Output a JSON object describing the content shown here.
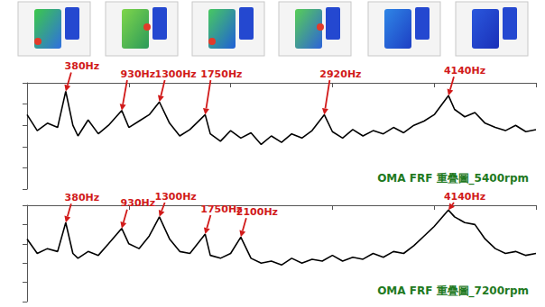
{
  "chart_data": [
    {
      "type": "line",
      "title": "OMA FRF 重疊圖_5400rpm",
      "color": "#000000",
      "x": [
        0,
        100,
        200,
        300,
        380,
        450,
        500,
        600,
        700,
        800,
        930,
        1000,
        1100,
        1200,
        1300,
        1400,
        1500,
        1600,
        1750,
        1800,
        1900,
        2000,
        2100,
        2200,
        2300,
        2400,
        2500,
        2600,
        2700,
        2800,
        2920,
        3000,
        3100,
        3200,
        3300,
        3400,
        3500,
        3600,
        3700,
        3800,
        3900,
        4000,
        4140,
        4200,
        4300,
        4400,
        4500,
        4600,
        4700,
        4800,
        4900,
        5000
      ],
      "values": [
        -30,
        -45,
        -38,
        -42,
        -8,
        -40,
        -50,
        -35,
        -48,
        -40,
        -26,
        -42,
        -36,
        -30,
        -18,
        -38,
        -50,
        -44,
        -30,
        -48,
        -55,
        -45,
        -52,
        -47,
        -58,
        -50,
        -56,
        -48,
        -52,
        -45,
        -30,
        -46,
        -52,
        -44,
        -50,
        -45,
        -48,
        -42,
        -47,
        -40,
        -36,
        -30,
        -12,
        -25,
        -32,
        -28,
        -38,
        -42,
        -45,
        -40,
        -46,
        -44
      ],
      "xlim": [
        0,
        5000
      ],
      "xticks": [
        0,
        1000,
        2000,
        3000,
        4000,
        5000
      ],
      "ylim": [
        -100,
        0
      ],
      "yticks": [
        -100,
        -80,
        -60,
        -40,
        -20,
        0
      ],
      "tick_labels": false,
      "grid": false,
      "annotations": [
        {
          "text": "380Hz",
          "x": 380
        },
        {
          "text": "930Hz",
          "x": 930
        },
        {
          "text": "1300Hz",
          "x": 1300
        },
        {
          "text": "1750Hz",
          "x": 1750
        },
        {
          "text": "2920Hz",
          "x": 2920
        },
        {
          "text": "4140Hz",
          "x": 4140
        }
      ]
    },
    {
      "type": "line",
      "title": "OMA FRF 重疊圖_7200rpm",
      "color": "#000000",
      "x": [
        0,
        100,
        200,
        300,
        380,
        450,
        500,
        600,
        700,
        800,
        930,
        1000,
        1100,
        1200,
        1300,
        1400,
        1500,
        1600,
        1750,
        1800,
        1900,
        2000,
        2100,
        2200,
        2300,
        2400,
        2500,
        2600,
        2700,
        2800,
        2900,
        3000,
        3100,
        3200,
        3300,
        3400,
        3500,
        3600,
        3700,
        3800,
        3900,
        4000,
        4140,
        4200,
        4300,
        4400,
        4500,
        4600,
        4700,
        4800,
        4900,
        5000
      ],
      "values": [
        -35,
        -50,
        -45,
        -48,
        -18,
        -50,
        -55,
        -48,
        -52,
        -40,
        -24,
        -40,
        -45,
        -32,
        -12,
        -35,
        -48,
        -50,
        -30,
        -52,
        -55,
        -50,
        -33,
        -55,
        -60,
        -58,
        -62,
        -55,
        -60,
        -56,
        -58,
        -52,
        -58,
        -54,
        -56,
        -50,
        -54,
        -48,
        -50,
        -42,
        -32,
        -22,
        -5,
        -12,
        -18,
        -20,
        -35,
        -45,
        -50,
        -48,
        -52,
        -50
      ],
      "xlim": [
        0,
        5000
      ],
      "xticks": [
        0,
        1000,
        2000,
        3000,
        4000,
        5000
      ],
      "ylim": [
        -100,
        0
      ],
      "yticks": [
        -100,
        -80,
        -60,
        -40,
        -20,
        0
      ],
      "tick_labels": false,
      "grid": false,
      "annotations": [
        {
          "text": "380Hz",
          "x": 380
        },
        {
          "text": "930Hz",
          "x": 930
        },
        {
          "text": "1300Hz",
          "x": 1300
        },
        {
          "text": "1750Hz",
          "x": 1750
        },
        {
          "text": "2100Hz",
          "x": 2100
        },
        {
          "text": "4140Hz",
          "x": 4140
        }
      ]
    }
  ]
}
